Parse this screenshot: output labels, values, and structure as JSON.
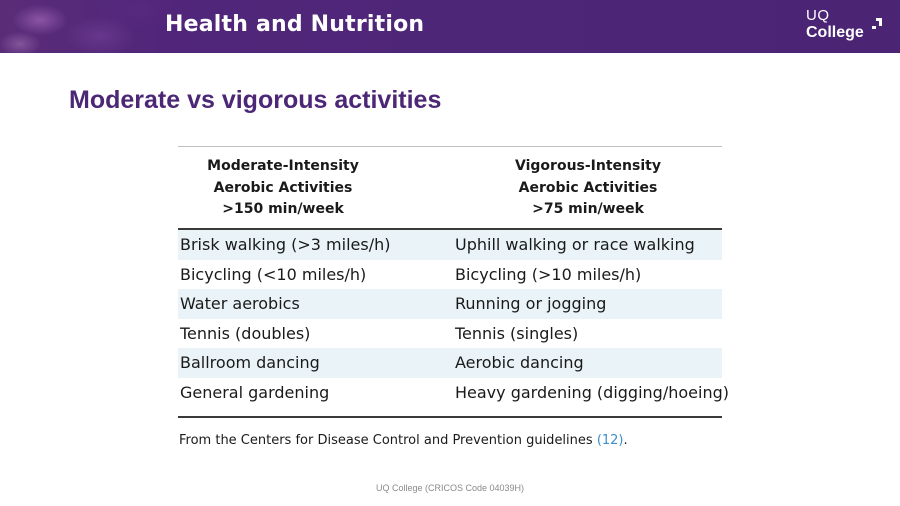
{
  "header": {
    "title": "Health and Nutrition",
    "logo": {
      "line1": "UQ",
      "line2": "College"
    }
  },
  "slide": {
    "title": "Moderate vs vigorous activities"
  },
  "table": {
    "columns": [
      {
        "line1": "Moderate-Intensity",
        "line2": "Aerobic Activities",
        "line3": ">150 min/week"
      },
      {
        "line1": "Vigorous-Intensity",
        "line2": "Aerobic Activities",
        "line3": ">75 min/week"
      }
    ],
    "rows": [
      {
        "moderate": "Brisk walking (>3 miles/h)",
        "vigorous": "Uphill walking or race walking"
      },
      {
        "moderate": "Bicycling (<10 miles/h)",
        "vigorous": "Bicycling (>10 miles/h)"
      },
      {
        "moderate": "Water aerobics",
        "vigorous": "Running or jogging"
      },
      {
        "moderate": "Tennis (doubles)",
        "vigorous": "Tennis (singles)"
      },
      {
        "moderate": "Ballroom dancing",
        "vigorous": "Aerobic dancing"
      },
      {
        "moderate": "General gardening",
        "vigorous": "Heavy gardening (digging/hoeing)"
      }
    ],
    "footnote": {
      "text": "From the Centers for Disease Control and Prevention guidelines ",
      "ref": "(12)",
      "end": "."
    }
  },
  "footer": {
    "text": "UQ College (CRICOS Code 04039H)"
  },
  "colors": {
    "brand_purple": "#4b2776",
    "row_shade": "#eaf4f8",
    "link_blue": "#3d8fc9"
  }
}
